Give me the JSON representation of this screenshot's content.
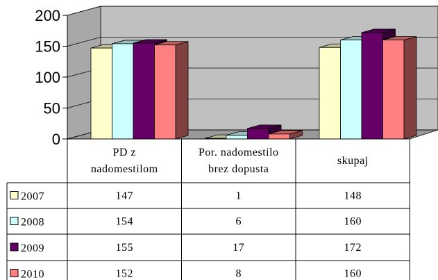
{
  "chart_data": {
    "type": "bar3d",
    "categories": [
      "PD z\nnadomestilom",
      "Por. nadomestilo\nbrez dopusta",
      "skupaj"
    ],
    "series": [
      {
        "name": "2007",
        "color": "#ffffcc",
        "values": [
          147,
          1,
          148
        ]
      },
      {
        "name": "2008",
        "color": "#ccffff",
        "values": [
          154,
          6,
          160
        ]
      },
      {
        "name": "2009",
        "color": "#660066",
        "values": [
          155,
          17,
          172
        ]
      },
      {
        "name": "2010",
        "color": "#ff8080",
        "values": [
          152,
          8,
          160
        ]
      }
    ],
    "ylim": [
      0,
      200
    ],
    "yticks": [
      0,
      50,
      100,
      150,
      200
    ],
    "grid": true,
    "data_table": true
  }
}
